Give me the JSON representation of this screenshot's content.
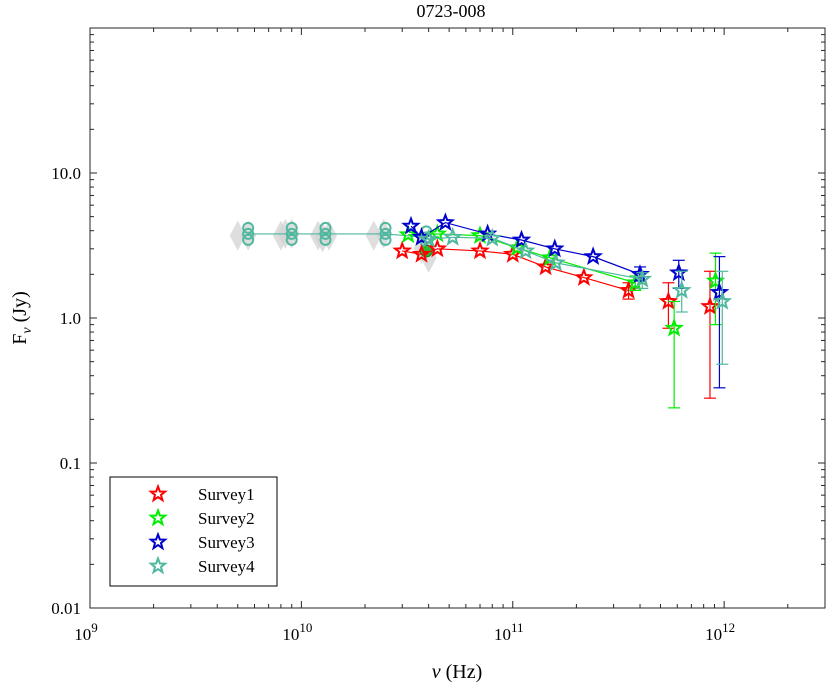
{
  "chart_data": {
    "type": "scatter",
    "title": "0723-008",
    "xlabel": "ν (Hz)",
    "ylabel": "Fν (Jy)",
    "xscale": "log",
    "yscale": "log",
    "xlim": [
      1000000000.0,
      3000000000000.0
    ],
    "ylim": [
      0.01,
      100
    ],
    "x_ticks": [
      {
        "value": 1000000000.0,
        "base": "10",
        "exp": "9"
      },
      {
        "value": 10000000000.0,
        "base": "10",
        "exp": "10"
      },
      {
        "value": 100000000000.0,
        "base": "10",
        "exp": "11"
      },
      {
        "value": 1000000000000.0,
        "base": "10",
        "exp": "12"
      }
    ],
    "y_ticks": [
      {
        "value": 0.01,
        "label": "0.01"
      },
      {
        "value": 0.1,
        "label": "0.1"
      },
      {
        "value": 1,
        "label": "1.0"
      },
      {
        "value": 10,
        "label": "10.0"
      }
    ],
    "legend": {
      "position": "bottom-left",
      "entries": [
        "Survey1",
        "Survey2",
        "Survey3",
        "Survey4"
      ]
    },
    "ancillary": {
      "color": "#d3d3d3",
      "points": [
        {
          "x": 5000000000.0,
          "y": 3.7
        },
        {
          "x": 5600000000.0,
          "y": 3.7
        },
        {
          "x": 8000000000.0,
          "y": 3.7
        },
        {
          "x": 8400000000.0,
          "y": 3.8
        },
        {
          "x": 9000000000.0,
          "y": 3.8
        },
        {
          "x": 12000000000.0,
          "y": 3.7
        },
        {
          "x": 12600000000.0,
          "y": 3.6
        },
        {
          "x": 13500000000.0,
          "y": 3.7
        },
        {
          "x": 22000000000.0,
          "y": 3.7
        },
        {
          "x": 24500000000.0,
          "y": 3.8
        },
        {
          "x": 37000000000.0,
          "y": 3.0
        },
        {
          "x": 40000000000.0,
          "y": 2.6
        }
      ]
    },
    "planck_ground": {
      "x": [
        5600000000.0,
        9000000000.0,
        13000000000.0,
        25000000000.0,
        39000000000.0
      ],
      "y": [
        3.8,
        3.8,
        3.8,
        3.8,
        3.6
      ],
      "color": "#4fb89f"
    },
    "series": [
      {
        "name": "Survey1",
        "color": "#ff0000",
        "points": [
          {
            "x": 30000000000.0,
            "y": 2.9
          },
          {
            "x": 37000000000.0,
            "y": 2.75
          },
          {
            "x": 44000000000.0,
            "y": 3.0
          },
          {
            "x": 70000000000.0,
            "y": 2.9
          },
          {
            "x": 100000000000.0,
            "y": 2.75
          },
          {
            "x": 143000000000.0,
            "y": 2.25
          },
          {
            "x": 217000000000.0,
            "y": 1.9
          },
          {
            "x": 353000000000.0,
            "y": 1.55
          },
          {
            "x": 545000000000.0,
            "y": 1.3
          },
          {
            "x": 857000000000.0,
            "y": 1.2
          }
        ],
        "errors": [
          [
            null,
            null
          ],
          [
            null,
            null
          ],
          [
            null,
            null
          ],
          [
            null,
            null
          ],
          [
            null,
            null
          ],
          [
            null,
            null
          ],
          [
            null,
            null
          ],
          [
            1.35,
            1.75
          ],
          [
            0.85,
            1.75
          ],
          [
            0.28,
            2.1
          ]
        ]
      },
      {
        "name": "Survey2",
        "color": "#00ee00",
        "points": [
          {
            "x": 32000000000.0,
            "y": 3.75
          },
          {
            "x": 44000000000.0,
            "y": 3.8
          },
          {
            "x": 70000000000.0,
            "y": 3.7
          },
          {
            "x": 105000000000.0,
            "y": 3.05
          },
          {
            "x": 150000000000.0,
            "y": 2.6
          },
          {
            "x": 380000000000.0,
            "y": 1.75
          },
          {
            "x": 580000000000.0,
            "y": 0.85
          },
          {
            "x": 910000000000.0,
            "y": 1.8
          }
        ],
        "errors": [
          [
            null,
            null
          ],
          [
            null,
            null
          ],
          [
            null,
            null
          ],
          [
            null,
            null
          ],
          [
            null,
            null
          ],
          [
            1.55,
            1.95
          ],
          [
            0.24,
            1.3
          ],
          [
            0.9,
            2.8
          ]
        ]
      },
      {
        "name": "Survey3",
        "color": "#0000cc",
        "points": [
          {
            "x": 33000000000.0,
            "y": 4.3
          },
          {
            "x": 37000000000.0,
            "y": 3.6
          },
          {
            "x": 48000000000.0,
            "y": 4.55
          },
          {
            "x": 76000000000.0,
            "y": 3.8
          },
          {
            "x": 110000000000.0,
            "y": 3.45
          },
          {
            "x": 158000000000.0,
            "y": 3.0
          },
          {
            "x": 240000000000.0,
            "y": 2.65
          },
          {
            "x": 400000000000.0,
            "y": 2.0
          },
          {
            "x": 610000000000.0,
            "y": 2.05
          },
          {
            "x": 950000000000.0,
            "y": 1.5
          }
        ],
        "errors": [
          [
            null,
            null
          ],
          [
            null,
            null
          ],
          [
            null,
            null
          ],
          [
            null,
            null
          ],
          [
            null,
            null
          ],
          [
            null,
            null
          ],
          [
            null,
            null
          ],
          [
            1.8,
            2.25
          ],
          [
            1.6,
            2.5
          ],
          [
            0.33,
            2.65
          ]
        ]
      },
      {
        "name": "Survey4",
        "color": "#4fb89f",
        "points": [
          {
            "x": 40000000000.0,
            "y": 3.5
          },
          {
            "x": 52000000000.0,
            "y": 3.6
          },
          {
            "x": 80000000000.0,
            "y": 3.55
          },
          {
            "x": 115000000000.0,
            "y": 2.9
          },
          {
            "x": 160000000000.0,
            "y": 2.4
          },
          {
            "x": 410000000000.0,
            "y": 1.85
          },
          {
            "x": 630000000000.0,
            "y": 1.55
          },
          {
            "x": 980000000000.0,
            "y": 1.3
          }
        ],
        "errors": [
          [
            null,
            null
          ],
          [
            null,
            null
          ],
          [
            null,
            null
          ],
          [
            null,
            null
          ],
          [
            null,
            null
          ],
          [
            1.6,
            2.05
          ],
          [
            1.1,
            2.1
          ],
          [
            0.48,
            2.1
          ]
        ]
      }
    ]
  }
}
